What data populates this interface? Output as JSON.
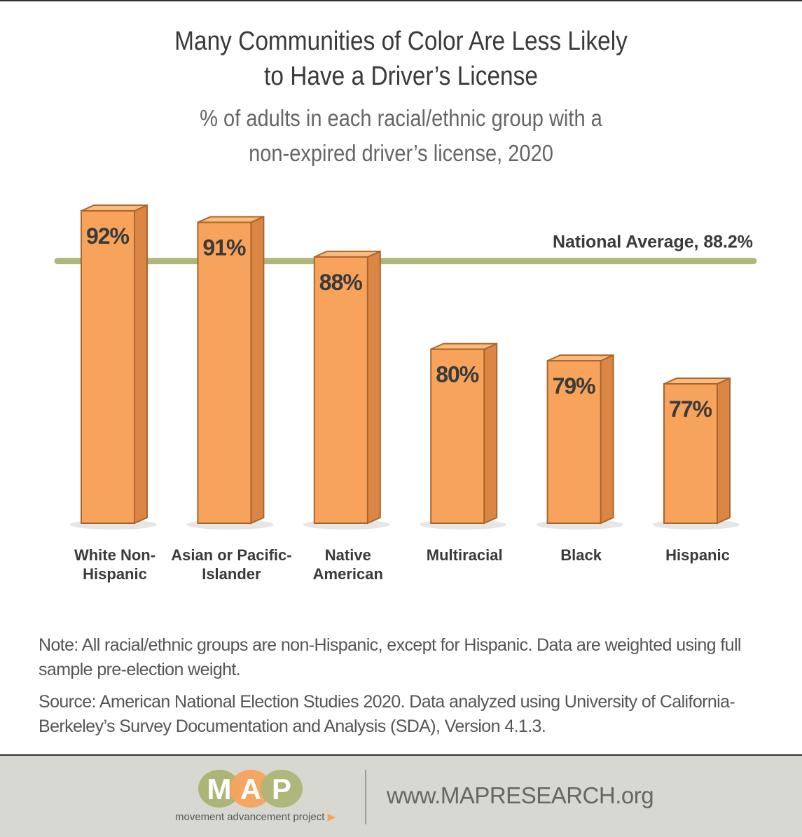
{
  "title_lines": [
    "Many Communities of Color Are Less Likely",
    "to Have a Driver’s License"
  ],
  "subtitle_lines": [
    "% of adults in each racial/ethnic group with a",
    "non-expired driver’s license, 2020"
  ],
  "chart_data": {
    "type": "bar",
    "categories": [
      [
        "White Non-",
        "Hispanic"
      ],
      [
        "Asian or Pacific-",
        "Islander"
      ],
      [
        "Native",
        "American"
      ],
      [
        "Multiracial"
      ],
      [
        "Black"
      ],
      [
        "Hispanic"
      ]
    ],
    "values": [
      92,
      91,
      88,
      80,
      79,
      77
    ],
    "data_labels": [
      "92%",
      "91%",
      "88%",
      "80%",
      "79%",
      "77%"
    ],
    "reference_line": {
      "value": 88.2,
      "label": "National Average, 88.2%",
      "color": "#b0b77c"
    },
    "ylim": [
      65,
      92
    ],
    "grid": false,
    "bar_color": "#f7a35c",
    "bar_side_color": "#dc8646",
    "bar_top_color": "#f9bb7e",
    "bar_outline_color": "#a9652c"
  },
  "notes": {
    "note": "Note: All racial/ethnic groups are non-Hispanic, except for Hispanic. Data are weighted using full sample pre-election weight.",
    "source": "Source: American National Election Studies 2020. Data analyzed using University of California-Berkeley’s Survey Documentation and Analysis (SDA), Version 4.1.3."
  },
  "footer": {
    "logo_letters": [
      "M",
      "A",
      "P"
    ],
    "logo_tagline": "movement advancement project",
    "url": "www.MAPRESEARCH.org",
    "colors": {
      "green": "#adb576",
      "orange": "#f7a35c"
    }
  }
}
